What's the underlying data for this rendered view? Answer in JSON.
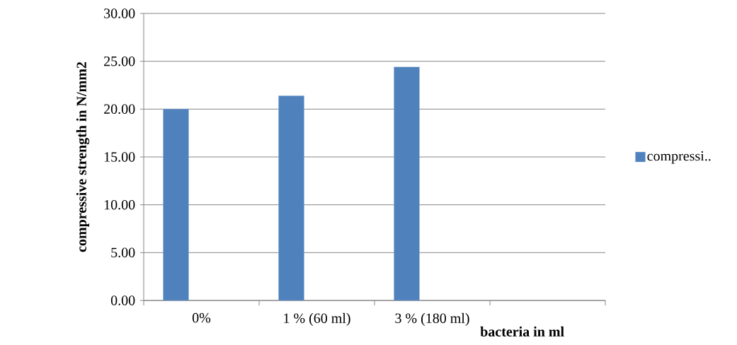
{
  "chart_data": {
    "type": "bar",
    "categories": [
      "0%",
      "1 % (60 ml)",
      "3 % (180 ml)",
      null
    ],
    "series": [
      {
        "name": "compressi..",
        "color": "#4f81bd",
        "values": [
          20.0,
          21.4,
          24.4,
          null
        ]
      }
    ],
    "xlabel": "bacteria in ml",
    "ylabel": "compressive strength in N/mm2",
    "ylim": [
      0,
      30
    ],
    "yticks": [
      {
        "value": 0,
        "label": "0.00"
      },
      {
        "value": 5,
        "label": "5.00"
      },
      {
        "value": 10,
        "label": "10.00"
      },
      {
        "value": 15,
        "label": "15.00"
      },
      {
        "value": 20,
        "label": "20.00"
      },
      {
        "value": 25,
        "label": "25.00"
      },
      {
        "value": 30,
        "label": "30.00"
      }
    ],
    "grid": "y",
    "legend": "right"
  }
}
